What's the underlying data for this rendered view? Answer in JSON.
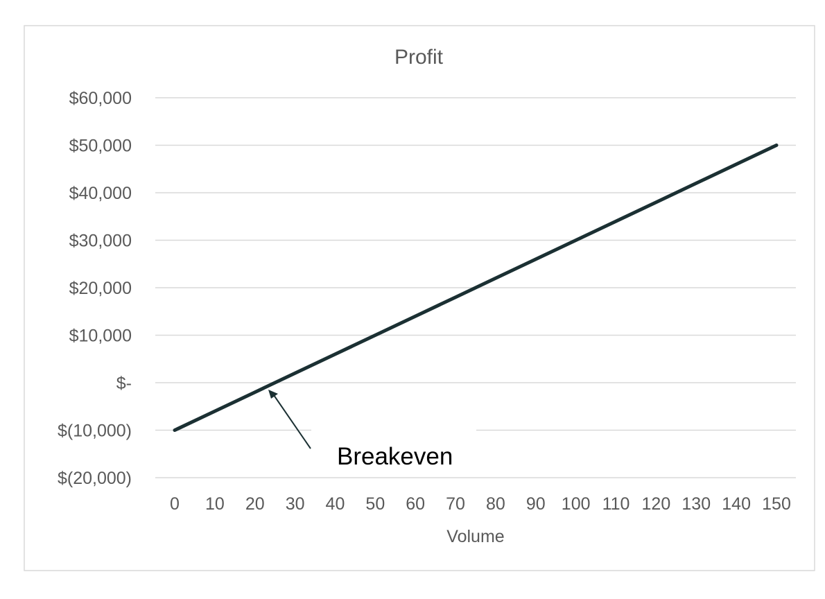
{
  "chart_data": {
    "type": "line",
    "title": "Profit",
    "xlabel": "Volume",
    "ylabel": "",
    "x": [
      0,
      10,
      20,
      30,
      40,
      50,
      60,
      70,
      80,
      90,
      100,
      110,
      120,
      130,
      140,
      150
    ],
    "series": [
      {
        "values": [
          -10000,
          -6000,
          -2000,
          2000,
          6000,
          10000,
          14000,
          18000,
          22000,
          26000,
          30000,
          34000,
          38000,
          42000,
          46000,
          50000
        ],
        "color": "#1b3033"
      }
    ],
    "xlim": [
      0,
      150
    ],
    "ylim": [
      -20000,
      60000
    ],
    "x_tick_labels": [
      "0",
      "10",
      "20",
      "30",
      "40",
      "50",
      "60",
      "70",
      "80",
      "90",
      "100",
      "110",
      "120",
      "130",
      "140",
      "150"
    ],
    "y_ticks": [
      60000,
      50000,
      40000,
      30000,
      20000,
      10000,
      0,
      -10000,
      -20000
    ],
    "y_tick_labels": [
      "$60,000",
      "$50,000",
      "$40,000",
      "$30,000",
      "$20,000",
      "$10,000",
      "$-",
      "$(10,000)",
      "$(20,000)"
    ],
    "grid": true,
    "legend": "none",
    "annotations": [
      {
        "text": "Breakeven",
        "points_to": {
          "x": 25,
          "y": 0
        }
      }
    ]
  }
}
